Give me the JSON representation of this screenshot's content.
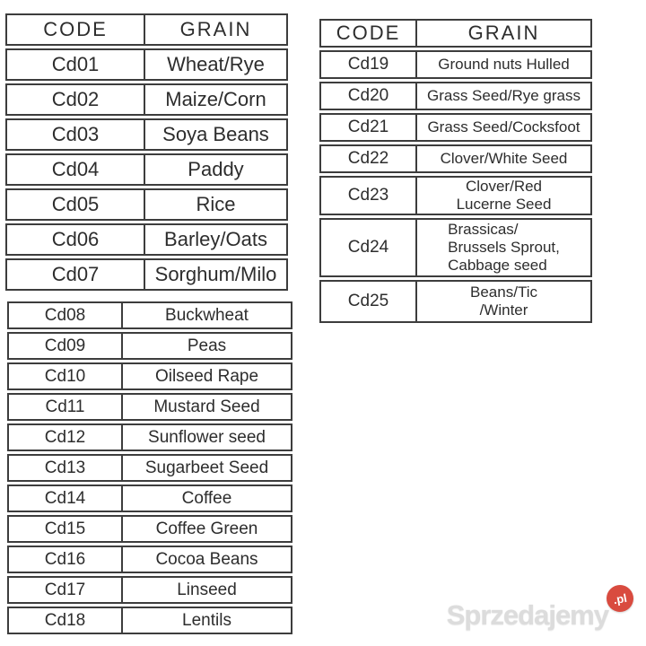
{
  "tables": [
    {
      "name": "grain-codes-1",
      "headers": [
        "CODE",
        "GRAIN"
      ],
      "rows": [
        [
          "Cd01",
          "Wheat/Rye"
        ],
        [
          "Cd02",
          "Maize/Corn"
        ],
        [
          "Cd03",
          "Soya Beans"
        ],
        [
          "Cd04",
          "Paddy"
        ],
        [
          "Cd05",
          "Rice"
        ],
        [
          "Cd06",
          "Barley/Oats"
        ],
        [
          "Cd07",
          "Sorghum/Milo"
        ]
      ]
    },
    {
      "name": "grain-codes-2",
      "rows": [
        [
          "Cd08",
          "Buckwheat"
        ],
        [
          "Cd09",
          "Peas"
        ],
        [
          "Cd10",
          "Oilseed Rape"
        ],
        [
          "Cd11",
          "Mustard Seed"
        ],
        [
          "Cd12",
          "Sunflower seed"
        ],
        [
          "Cd13",
          "Sugarbeet Seed"
        ],
        [
          "Cd14",
          "Coffee"
        ],
        [
          "Cd15",
          "Coffee Green"
        ],
        [
          "Cd16",
          "Cocoa Beans"
        ],
        [
          "Cd17",
          "Linseed"
        ],
        [
          "Cd18",
          "Lentils"
        ]
      ]
    },
    {
      "name": "grain-codes-3",
      "headers": [
        "CODE",
        "GRAIN"
      ],
      "rows": [
        [
          "Cd19",
          "Ground nuts Hulled"
        ],
        [
          "Cd20",
          "Grass Seed/Rye grass"
        ],
        [
          "Cd21",
          "Grass Seed/Cocksfoot"
        ],
        [
          "Cd22",
          "Clover/White Seed"
        ],
        [
          "Cd23",
          "Clover/Red\nLucerne Seed"
        ],
        [
          "Cd24",
          "Brassicas/\nBrussels Sprout,\nCabbage seed"
        ],
        [
          "Cd25",
          "Beans/Tic\n/Winter"
        ]
      ]
    }
  ],
  "watermark": {
    "text": "Sprzedajemy",
    "badge": ".pl",
    "badge_color": "#d94b3f"
  }
}
